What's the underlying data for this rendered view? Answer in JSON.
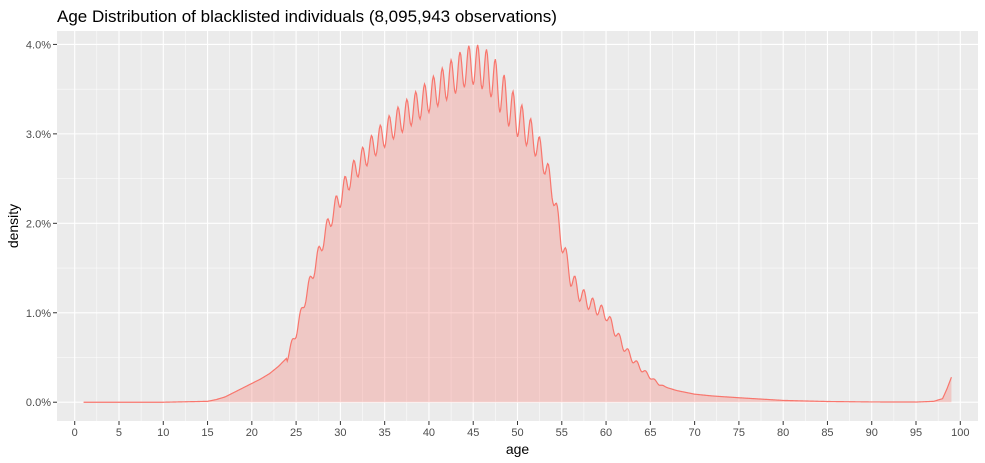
{
  "chart_data": {
    "type": "area",
    "title": "Age Distribution of blacklisted individuals (8,095,943 observations)",
    "xlabel": "age",
    "ylabel": "density",
    "xlim": [
      -2,
      102
    ],
    "ylim": [
      -0.0021,
      0.0415
    ],
    "x_ticks": [
      0,
      5,
      10,
      15,
      20,
      25,
      30,
      35,
      40,
      45,
      50,
      55,
      60,
      65,
      70,
      75,
      80,
      85,
      90,
      95,
      100
    ],
    "y_ticks": [
      0,
      0.01,
      0.02,
      0.03,
      0.04
    ],
    "x_tick_labels": [
      "0",
      "5",
      "10",
      "15",
      "20",
      "25",
      "30",
      "35",
      "40",
      "45",
      "50",
      "55",
      "60",
      "65",
      "70",
      "75",
      "80",
      "85",
      "90",
      "95",
      "100"
    ],
    "y_tick_labels": [
      "0.0%",
      "1.0%",
      "2.0%",
      "3.0%",
      "4.0%"
    ],
    "grid": true,
    "colors": {
      "line": "#f8766d",
      "fill": "#f8766d",
      "fill_opacity": 0.3,
      "panel": "#ebebeb",
      "grid": "#ffffff"
    },
    "series": [
      {
        "x": [
          1,
          10,
          15,
          16,
          17,
          18,
          19,
          20,
          21,
          22,
          23,
          24,
          25,
          26,
          27,
          28,
          29,
          30,
          31,
          32,
          33,
          34,
          35,
          36,
          37,
          38,
          39,
          40,
          41,
          42,
          43,
          44,
          45,
          46,
          47,
          48,
          49,
          50,
          51,
          52,
          53,
          54,
          55,
          56,
          57,
          58,
          59,
          60,
          61,
          62,
          63,
          64,
          65,
          66,
          67,
          68,
          69,
          70,
          72,
          75,
          80,
          85,
          90,
          95,
          97,
          98,
          98.5,
          99
        ],
        "y": [
          0,
          0,
          0.0001,
          0.0003,
          0.0006,
          0.0011,
          0.0016,
          0.0021,
          0.0026,
          0.0032,
          0.004,
          0.005,
          0.0078,
          0.0115,
          0.0148,
          0.018,
          0.0208,
          0.023,
          0.025,
          0.0265,
          0.0278,
          0.029,
          0.03,
          0.031,
          0.0318,
          0.0326,
          0.0334,
          0.0342,
          0.035,
          0.0358,
          0.0366,
          0.0374,
          0.0378,
          0.0374,
          0.0366,
          0.035,
          0.0332,
          0.0318,
          0.0306,
          0.0292,
          0.027,
          0.0235,
          0.018,
          0.014,
          0.0122,
          0.0112,
          0.0105,
          0.0098,
          0.008,
          0.0062,
          0.0048,
          0.0037,
          0.0028,
          0.002,
          0.0016,
          0.0013,
          0.0011,
          0.0009,
          0.0007,
          0.0005,
          0.0002,
          8e-05,
          3e-05,
          2e-05,
          0.0001,
          0.0004,
          0.0015,
          0.0028
        ]
      }
    ]
  }
}
